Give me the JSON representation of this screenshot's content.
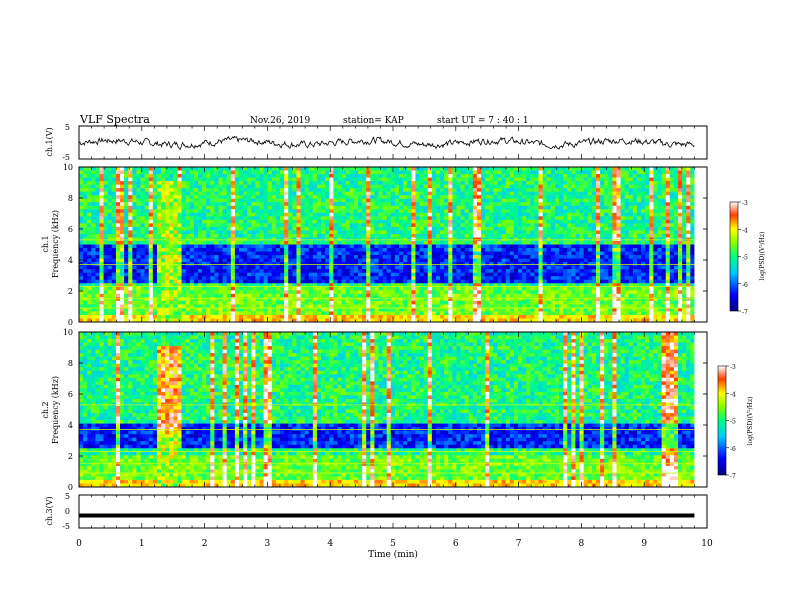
{
  "header": {
    "title": "VLF Spectra",
    "date": "Nov.26, 2019",
    "station": "station= KAP",
    "start": "start UT = 7 : 40 : 1"
  },
  "chart_data": [
    {
      "type": "line",
      "panel": "ch1-waveform",
      "ylabel": "ch.1(V)",
      "ylim": [
        -5,
        5
      ],
      "yticks": [
        "5",
        "-5"
      ],
      "xlim": [
        0,
        10
      ],
      "description_series": "noisy waveform centered near 0 V, amplitude about ±1.5 V, ending at ~9.8 min"
    },
    {
      "type": "heatmap",
      "panel": "ch1-spectrogram",
      "ylabel": "ch.1 Frequency (kHz)",
      "ylim": [
        0,
        10
      ],
      "yticks": [
        "0",
        "2",
        "4",
        "6",
        "8",
        "10"
      ],
      "xlim": [
        0,
        10
      ],
      "data_end_min": 9.8,
      "colorbar": {
        "label": "log(PSD)(V²/Hz)",
        "range": [
          -7,
          -3
        ],
        "ticks": [
          "-3",
          "-4",
          "-5",
          "-6",
          "-7"
        ]
      },
      "dark_blue_bands_khz": [
        [
          2.6,
          3.3
        ],
        [
          3.5,
          4.0
        ],
        [
          4.2,
          5.1
        ]
      ],
      "bright_band_khz": [
        0,
        2.2
      ]
    },
    {
      "type": "heatmap",
      "panel": "ch2-spectrogram",
      "ylabel": "ch.2 Frequency (kHz)",
      "ylim": [
        0,
        10
      ],
      "yticks": [
        "0",
        "2",
        "4",
        "6",
        "8",
        "10"
      ],
      "xlim": [
        0,
        10
      ],
      "data_end_min": 9.8,
      "colorbar": {
        "label": "log(PSD)(V²/Hz)",
        "range": [
          -7,
          -3
        ],
        "ticks": [
          "-3",
          "-4",
          "-5",
          "-6",
          "-7"
        ]
      },
      "dark_blue_bands_khz": [
        [
          2.6,
          3.3
        ],
        [
          3.5,
          4.0
        ]
      ],
      "bright_band_khz": [
        0,
        2.0
      ]
    },
    {
      "type": "line",
      "panel": "ch3-waveform",
      "ylabel": "ch.3(V)",
      "ylim": [
        -5,
        5
      ],
      "yticks": [
        "5",
        "0",
        "-5"
      ],
      "xlim": [
        0,
        10
      ],
      "series": [
        {
          "x": [
            0,
            9.8
          ],
          "y": [
            -1.2,
            -1.2
          ]
        }
      ]
    }
  ],
  "xaxis": {
    "label": "Time (min)",
    "ticks": [
      "0",
      "1",
      "2",
      "3",
      "4",
      "5",
      "6",
      "7",
      "8",
      "9",
      "10"
    ]
  }
}
